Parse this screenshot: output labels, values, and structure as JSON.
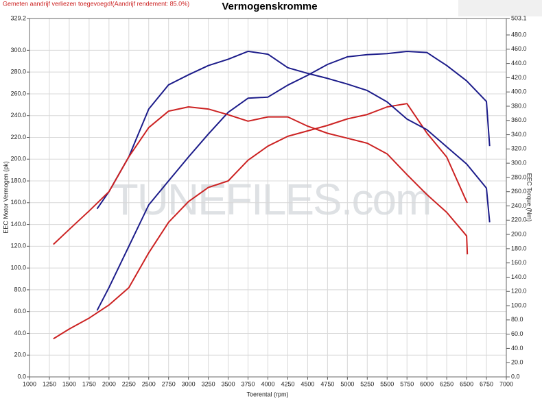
{
  "chart_data": {
    "type": "line",
    "note_text": "Gemeten aandrijf verliezen toegevoegd!(Aandrijf rendement: 85.0%)",
    "title": "Vermogenskromme",
    "xlabel": "Toerental (rpm)",
    "ylabel": "EEC Motor Vermogen (pk)",
    "y2label": "EEC Torque (Nm)",
    "watermark": "TUNEFILES.com",
    "xlim": [
      1000,
      7000
    ],
    "xticks": [
      1000,
      1250,
      1500,
      1750,
      2000,
      2250,
      2500,
      2750,
      3000,
      3250,
      3500,
      3750,
      4000,
      4250,
      4500,
      4750,
      5000,
      5250,
      5500,
      5750,
      6000,
      6250,
      6500,
      6750,
      7000
    ],
    "ylim": [
      0,
      329.2
    ],
    "yticks": [
      {
        "value": 0,
        "label": "0.0"
      },
      {
        "value": 20,
        "label": "20.0"
      },
      {
        "value": 40,
        "label": "40.0"
      },
      {
        "value": 60,
        "label": "60.0"
      },
      {
        "value": 80,
        "label": "80.0"
      },
      {
        "value": 100,
        "label": "100.0"
      },
      {
        "value": 120,
        "label": "120.0"
      },
      {
        "value": 140,
        "label": "140.0"
      },
      {
        "value": 160,
        "label": "160.0"
      },
      {
        "value": 180,
        "label": "180.0"
      },
      {
        "value": 200,
        "label": "200.0"
      },
      {
        "value": 220,
        "label": "220.0"
      },
      {
        "value": 240,
        "label": "240.0"
      },
      {
        "value": 260,
        "label": "260.0"
      },
      {
        "value": 280,
        "label": "280.0"
      },
      {
        "value": 300,
        "label": "300.0"
      },
      329.2
    ],
    "y2lim": [
      0,
      503.1
    ],
    "y2ticks": [
      {
        "value": 0,
        "label": "0.0"
      },
      {
        "value": 20,
        "label": "20.0"
      },
      {
        "value": 40,
        "label": "40.0"
      },
      {
        "value": 60,
        "label": "60.0"
      },
      {
        "value": 80,
        "label": "80.0"
      },
      {
        "value": 100,
        "label": "100.0"
      },
      {
        "value": 120,
        "label": "120.0"
      },
      {
        "value": 140,
        "label": "140.0"
      },
      {
        "value": 160,
        "label": "160.0"
      },
      {
        "value": 180,
        "label": "180.0"
      },
      {
        "value": 200,
        "label": "200.0"
      },
      {
        "value": 220,
        "label": "220.0"
      },
      {
        "value": 240,
        "label": "240.0"
      },
      {
        "value": 260,
        "label": "260.0"
      },
      {
        "value": 280,
        "label": "280.0"
      },
      {
        "value": 300,
        "label": "300.0"
      },
      {
        "value": 320,
        "label": "320.0"
      },
      {
        "value": 340,
        "label": "340.0"
      },
      {
        "value": 360,
        "label": "360.0"
      },
      {
        "value": 380,
        "label": "380.0"
      },
      {
        "value": 400,
        "label": "400.0"
      },
      {
        "value": 420,
        "label": "420.0"
      },
      {
        "value": 440,
        "label": "440.0"
      },
      {
        "value": 460,
        "label": "460.0"
      },
      {
        "value": 480,
        "label": "480.0"
      },
      503.1
    ],
    "grid": true,
    "series": [
      {
        "color": "#1c1c8a",
        "axis": "y",
        "x": [
          1850,
          2000,
          2250,
          2500,
          2750,
          3000,
          3250,
          3500,
          3750,
          4000,
          4250,
          4500,
          4750,
          5000,
          5250,
          5500,
          5750,
          6000,
          6250,
          6500,
          6750,
          6790
        ],
        "values": [
          61,
          82,
          120,
          158,
          180,
          202,
          223,
          243,
          256,
          257,
          268,
          277,
          287,
          294,
          296,
          297,
          299,
          298,
          286,
          272,
          253,
          212
        ]
      },
      {
        "color": "#cc2222",
        "axis": "y",
        "x": [
          1300,
          1500,
          1750,
          2000,
          2250,
          2500,
          2750,
          3000,
          3250,
          3500,
          3750,
          4000,
          4250,
          4500,
          4750,
          5000,
          5250,
          5500,
          5750,
          6000,
          6250,
          6500,
          6510
        ],
        "values": [
          35,
          44,
          54,
          66,
          82,
          114,
          142,
          161,
          174,
          180,
          199,
          212,
          221,
          226,
          231,
          237,
          241,
          248,
          251,
          224,
          202,
          161,
          160
        ]
      },
      {
        "color": "#1c1c8a",
        "axis": "y2",
        "x": [
          1850,
          2000,
          2250,
          2500,
          2750,
          3000,
          3250,
          3500,
          3750,
          4000,
          4250,
          4500,
          4750,
          5000,
          5250,
          5500,
          5750,
          6000,
          6250,
          6500,
          6750,
          6790
        ],
        "values": [
          236,
          260,
          309,
          376,
          410,
          424,
          437,
          446,
          457,
          453,
          434,
          426,
          419,
          411,
          402,
          386,
          362,
          347,
          323,
          299,
          265,
          217
        ]
      },
      {
        "color": "#cc2222",
        "axis": "y2",
        "x": [
          1300,
          1500,
          1750,
          2000,
          2250,
          2500,
          2750,
          3000,
          3250,
          3500,
          3750,
          4000,
          4250,
          4500,
          4750,
          5000,
          5250,
          5500,
          5750,
          6000,
          6250,
          6500,
          6510
        ],
        "values": [
          186,
          207,
          233,
          260,
          309,
          350,
          373,
          379,
          376,
          368,
          359,
          365,
          365,
          352,
          342,
          335,
          328,
          313,
          284,
          256,
          231,
          198,
          172
        ]
      }
    ]
  }
}
